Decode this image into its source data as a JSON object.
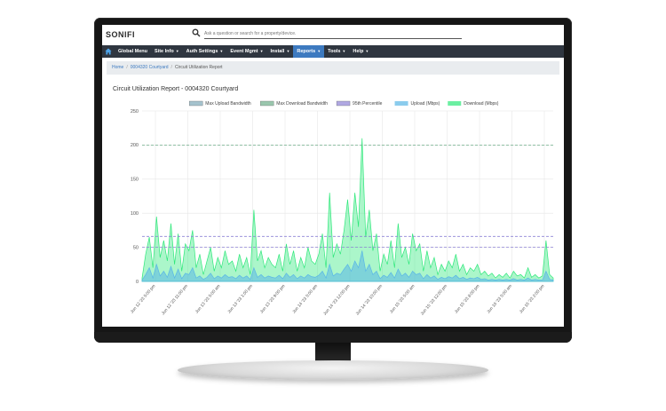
{
  "app": {
    "logo_text": "SONIFI",
    "search": {
      "placeholder": "Ask a question or search for a property/device."
    }
  },
  "nav": {
    "items": [
      {
        "label": "Global Menu",
        "caret": false
      },
      {
        "label": "Site Info",
        "caret": true
      },
      {
        "label": "Auth Settings",
        "caret": true
      },
      {
        "label": "Event Mgmt",
        "caret": true
      },
      {
        "label": "Install",
        "caret": true
      },
      {
        "label": "Reports",
        "caret": true,
        "active": true
      },
      {
        "label": "Tools",
        "caret": true
      },
      {
        "label": "Help",
        "caret": true
      }
    ]
  },
  "breadcrumb": {
    "home": "Home",
    "property": "0004320 Courtyard",
    "current": "Circuit Utilization Report"
  },
  "report": {
    "title": "Circuit Utilization Report - 0004320 Courtyard"
  },
  "colors": {
    "nav_bg": "#2f3640",
    "active_tab": "#3d7ac0",
    "download": "#2ee87a",
    "upload": "#5ab7e6",
    "max_download": "#6fae8a",
    "max_upload": "#7fa8b8",
    "percentile": "#8e83d6"
  },
  "chart_data": {
    "type": "area",
    "ylim": [
      0,
      250
    ],
    "yticks": [
      0,
      50,
      100,
      150,
      200,
      250
    ],
    "grid": true,
    "legend_position": "top",
    "legend": [
      {
        "label": "Max Upload Bandwidth",
        "color": "#7fa8b8",
        "style": "dashed"
      },
      {
        "label": "Max Download Bandwidth",
        "color": "#6fae8a",
        "style": "dashed"
      },
      {
        "label": "95th Percentile",
        "color": "#8e83d6",
        "style": "dashed"
      },
      {
        "label": "Upload (Mbps)",
        "color": "#5ab7e6",
        "style": "area"
      },
      {
        "label": "Download (Mbps)",
        "color": "#2ee87a",
        "style": "area"
      }
    ],
    "xticks": [
      "Jun 12 '23 5:00 pm",
      "Jun 12 '23 11:00 pm",
      "Jun 13 '23 5:00 am",
      "Jun 13 '23 1:00 pm",
      "Jun 13 '23 9:00 pm",
      "Jun 14 '23 5:00 am",
      "Jun 14 '23 12:00 pm",
      "Jun 14 '23 10:00 pm",
      "Jun 15 '23 5:00 am",
      "Jun 15 '23 12:00 pm",
      "Jun 15 '23 8:00 pm",
      "Jun 16 '23 5:00 am",
      "Jun 16 '23 2:00 pm"
    ],
    "thresholds": [
      {
        "name": "Max Download Bandwidth",
        "value": 200
      },
      {
        "name": "95th Percentile",
        "value": 66
      },
      {
        "name": "Max Upload Bandwidth",
        "value": 50
      }
    ],
    "series": [
      {
        "name": "Download (Mbps)",
        "values": [
          5,
          40,
          65,
          20,
          95,
          35,
          60,
          30,
          85,
          25,
          70,
          15,
          55,
          45,
          75,
          20,
          40,
          10,
          30,
          50,
          15,
          35,
          20,
          45,
          25,
          30,
          15,
          40,
          20,
          35,
          10,
          105,
          30,
          45,
          20,
          35,
          25,
          20,
          40,
          15,
          55,
          25,
          45,
          15,
          35,
          20,
          50,
          30,
          25,
          40,
          70,
          20,
          130,
          35,
          55,
          40,
          75,
          120,
          60,
          130,
          80,
          210,
          65,
          105,
          45,
          70,
          15,
          40,
          25,
          60,
          20,
          85,
          35,
          50,
          25,
          70,
          45,
          55,
          15,
          45,
          20,
          35,
          10,
          25,
          15,
          30,
          20,
          40,
          15,
          25,
          10,
          20,
          15,
          25,
          10,
          15,
          8,
          12,
          5,
          10,
          6,
          12,
          5,
          15,
          8,
          10,
          5,
          20,
          6,
          10,
          5,
          8,
          60,
          10,
          5
        ],
        "color": "#2ee87a"
      },
      {
        "name": "Upload (Mbps)",
        "values": [
          2,
          10,
          20,
          5,
          25,
          8,
          15,
          6,
          22,
          5,
          18,
          4,
          12,
          10,
          20,
          5,
          8,
          3,
          6,
          12,
          4,
          8,
          5,
          10,
          6,
          7,
          4,
          9,
          5,
          8,
          3,
          20,
          6,
          10,
          5,
          8,
          6,
          5,
          9,
          4,
          12,
          6,
          10,
          4,
          8,
          5,
          10,
          7,
          6,
          9,
          15,
          5,
          25,
          8,
          12,
          10,
          18,
          25,
          15,
          30,
          20,
          45,
          15,
          25,
          10,
          15,
          4,
          9,
          6,
          13,
          5,
          18,
          8,
          12,
          6,
          15,
          10,
          12,
          4,
          10,
          5,
          8,
          3,
          6,
          4,
          7,
          5,
          9,
          4,
          6,
          3,
          5,
          4,
          6,
          3,
          4,
          2,
          3,
          2,
          3,
          2,
          3,
          2,
          4,
          2,
          3,
          2,
          5,
          2,
          3,
          2,
          2,
          15,
          3,
          2
        ],
        "color": "#5ab7e6"
      }
    ]
  }
}
